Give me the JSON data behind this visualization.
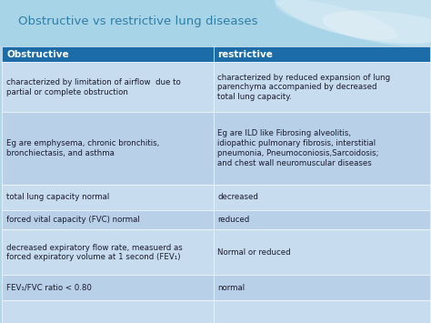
{
  "title": "Obstructive vs restrictive lung diseases",
  "title_color": "#2E7FA8",
  "title_fontsize": 9.5,
  "header": [
    "Obstructive",
    "restrictive"
  ],
  "header_bg": "#1B6CA8",
  "header_text_color": "#FFFFFF",
  "rows": [
    [
      "characterized by limitation of airflow  due to\npartial or complete obstruction",
      "characterized by reduced expansion of lung\nparenchyma accompanied by decreased\ntotal lung capacity."
    ],
    [
      "Eg are emphysema, chronic bronchitis,\nbronchiectasis, and asthma",
      "Eg are ILD like Fibrosing alveolitis,\nidiopathic pulmonary fibrosis, interstitial\npneumonia, Pneumoconiosis,Sarcoidosis;\nand chest wall neuromuscular diseases"
    ],
    [
      "total lung capacity normal",
      "decreased"
    ],
    [
      "forced vital capacity (FVC) normal",
      "reduced"
    ],
    [
      "decreased expiratory flow rate, measuerd as\nforced expiratory volume at 1 second (FEV₁)",
      "Normal or reduced"
    ],
    [
      "FEV₁/FVC ratio < 0.80",
      "normal"
    ],
    [
      "",
      ""
    ]
  ],
  "row_colors": [
    "#C8DCF0",
    "#B8D0E8",
    "#C8DCF0",
    "#B8D0E8",
    "#C8DCF0",
    "#B8D0E8",
    "#C8DCF0"
  ],
  "cell_text_color": "#1a1a2e",
  "title_bg_color": "#A8D4E8",
  "bg_color": "#B0D8EC",
  "figsize": [
    4.74,
    3.55
  ],
  "dpi": 100,
  "col_split": 0.495
}
